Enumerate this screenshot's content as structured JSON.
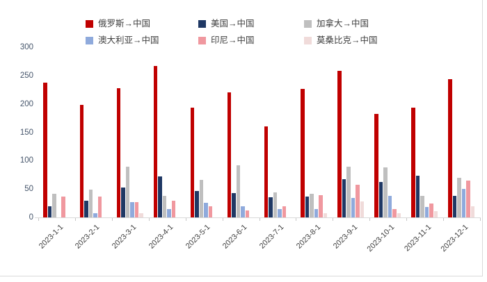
{
  "chart_data": {
    "type": "bar",
    "title": "",
    "categories": [
      "2023-1-1",
      "2023-2-1",
      "2023-3-1",
      "2023-4-1",
      "2023-5-1",
      "2023-6-1",
      "2023-7-1",
      "2023-8-1",
      "2023-9-1",
      "2023-10-1",
      "2023-11-1",
      "2023-12-1"
    ],
    "series": [
      {
        "name": "俄罗斯→中国",
        "color": "#C00000",
        "values": [
          237,
          199,
          228,
          267,
          194,
          220,
          161,
          226,
          259,
          183,
          193,
          244
        ]
      },
      {
        "name": "美国→中国",
        "color": "#1F3864",
        "values": [
          20,
          30,
          53,
          72,
          46,
          43,
          35,
          37,
          68,
          62,
          73,
          38
        ]
      },
      {
        "name": "加拿大→中国",
        "color": "#BFBFBF",
        "values": [
          42,
          49,
          89,
          38,
          66,
          92,
          44,
          42,
          90,
          88,
          38,
          70
        ]
      },
      {
        "name": "澳大利亚→中国",
        "color": "#8FAADC",
        "values": [
          0,
          7,
          27,
          15,
          26,
          20,
          15,
          15,
          34,
          38,
          18,
          50
        ]
      },
      {
        "name": "印尼→中国",
        "color": "#F0989F",
        "values": [
          37,
          37,
          27,
          30,
          20,
          12,
          20,
          39,
          58,
          15,
          25,
          65
        ]
      },
      {
        "name": "莫桑比克→中国",
        "color": "#F0DBDA",
        "values": [
          0,
          0,
          7,
          0,
          0,
          0,
          0,
          7,
          28,
          7,
          11,
          20
        ]
      }
    ],
    "ylim": [
      0,
      300
    ],
    "y_ticks": [
      0,
      50,
      100,
      150,
      200,
      250,
      300
    ],
    "grid": false,
    "legend_position": "top",
    "axis_tick_label_color": "#44546A",
    "category_label_color": "#404040",
    "axis_line_color": "#D9D9D9"
  }
}
